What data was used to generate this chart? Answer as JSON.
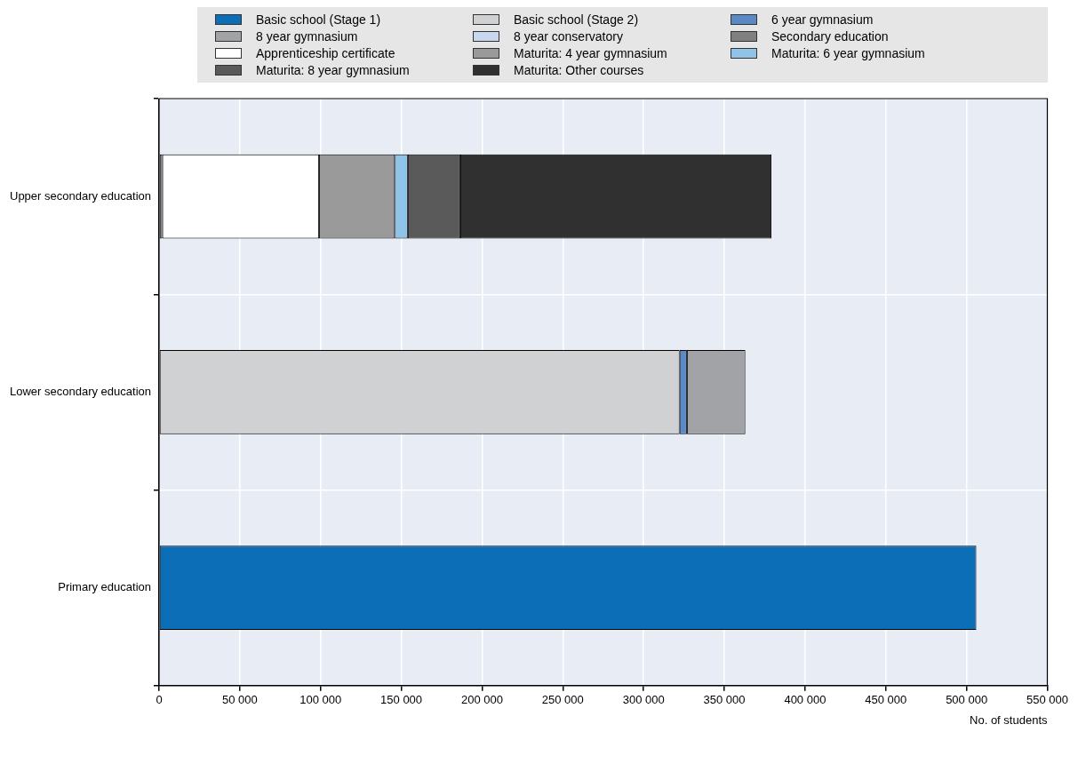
{
  "chart_data": {
    "type": "bar",
    "orientation": "horizontal",
    "stacked": true,
    "categories": [
      "Upper secondary education",
      "Lower secondary education",
      "Primary education"
    ],
    "series": [
      {
        "name": "Basic school (Stage 1)",
        "color": "#0b6eb6",
        "values": [
          null,
          null,
          506000
        ]
      },
      {
        "name": "Basic school (Stage 2)",
        "color": "#d0d1d3",
        "values": [
          null,
          322300,
          null
        ]
      },
      {
        "name": "6 year gymnasium",
        "color": "#5a8ac6",
        "values": [
          null,
          4500,
          null
        ]
      },
      {
        "name": "8 year gymnasium",
        "color": "#a2a3a6",
        "values": [
          null,
          36200,
          null
        ]
      },
      {
        "name": "8 year conservatory",
        "color": "#c9d7ee",
        "values": [
          null,
          null,
          null
        ]
      },
      {
        "name": "Secondary education",
        "color": "#808080",
        "values": [
          2000,
          null,
          null
        ]
      },
      {
        "name": "Apprenticeship certificate",
        "color": "#ffffff",
        "values": [
          97000,
          null,
          null
        ]
      },
      {
        "name": "Maturita: 4 year gymnasium",
        "color": "#9a9a9a",
        "values": [
          47000,
          null,
          null
        ]
      },
      {
        "name": "Maturita: 6 year gymnasium",
        "color": "#8fc3e8",
        "values": [
          8000,
          null,
          null
        ]
      },
      {
        "name": "Maturita: 8 year gymnasium",
        "color": "#5a5a5a",
        "values": [
          32500,
          null,
          null
        ]
      },
      {
        "name": "Maturita: Other courses",
        "color": "#303030",
        "values": [
          192700,
          null,
          null
        ]
      }
    ],
    "xlabel": "No. of students",
    "xlim": [
      0,
      550000
    ],
    "xticks": [
      {
        "value": 0,
        "label": "0"
      },
      {
        "value": 50000,
        "label": "50 000"
      },
      {
        "value": 100000,
        "label": "100 000"
      },
      {
        "value": 150000,
        "label": "150 000"
      },
      {
        "value": 200000,
        "label": "200 000"
      },
      {
        "value": 250000,
        "label": "250 000"
      },
      {
        "value": 300000,
        "label": "300 000"
      },
      {
        "value": 350000,
        "label": "350 000"
      },
      {
        "value": 400000,
        "label": "400 000"
      },
      {
        "value": 450000,
        "label": "450 000"
      },
      {
        "value": 500000,
        "label": "500 000"
      },
      {
        "value": 550000,
        "label": "550 000"
      }
    ],
    "grid": true,
    "legend": "top"
  }
}
